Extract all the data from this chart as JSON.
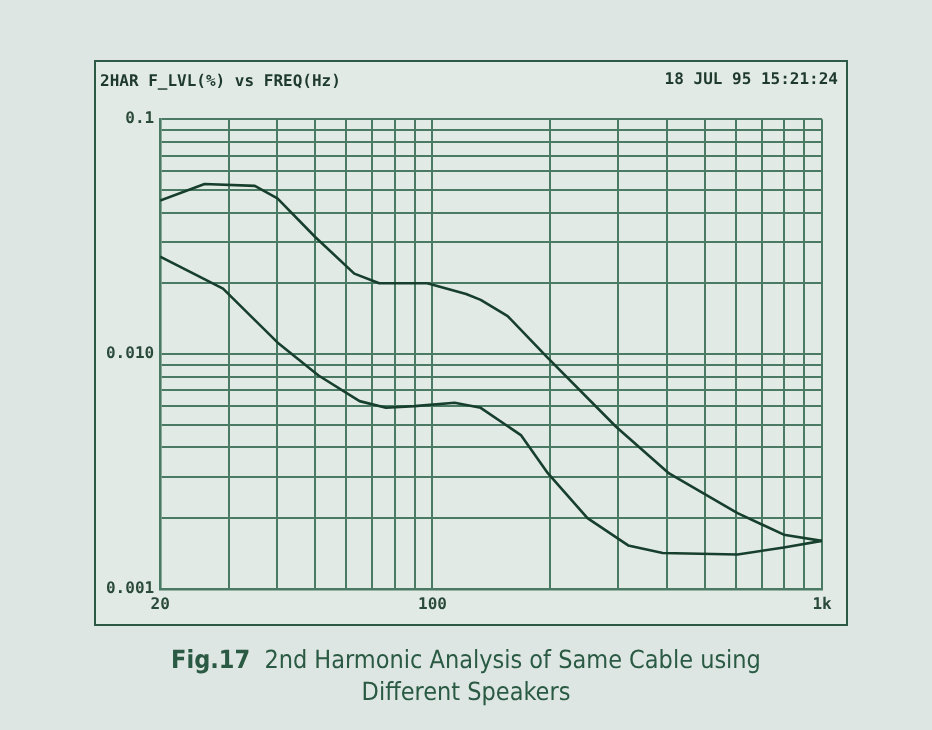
{
  "chart_data": {
    "type": "line",
    "title": "Fig.17 2nd Harmonic Analysis of Same Cable using Different Speakers",
    "subtitle": "2HAR F_LVL(%) vs FREQ(Hz)",
    "annotations": [
      "18 JUL 95 15:21:24"
    ],
    "log": "xy",
    "grid": true,
    "legend": false,
    "marker": "none",
    "line_style": "solid",
    "xlim": [
      20,
      1000
    ],
    "ylim": [
      0.001,
      0.1
    ],
    "xticks": [
      20,
      {
        "value": 30,
        "label": null
      },
      {
        "value": 40,
        "label": null
      },
      {
        "value": 50,
        "label": null
      },
      {
        "value": 60,
        "label": null
      },
      {
        "value": 70,
        "label": null
      },
      {
        "value": 80,
        "label": null
      },
      {
        "value": 90,
        "label": null
      },
      100,
      {
        "value": 200,
        "label": null
      },
      {
        "value": 300,
        "label": null
      },
      {
        "value": 400,
        "label": null
      },
      {
        "value": 500,
        "label": null
      },
      {
        "value": 600,
        "label": null
      },
      {
        "value": 700,
        "label": null
      },
      {
        "value": 800,
        "label": null
      },
      {
        "value": 900,
        "label": null
      },
      {
        "value": 1000,
        "label": "1k"
      }
    ],
    "yticks": [
      0.001,
      {
        "value": 0.002,
        "label": null
      },
      {
        "value": 0.003,
        "label": null
      },
      {
        "value": 0.004,
        "label": null
      },
      {
        "value": 0.005,
        "label": null
      },
      {
        "value": 0.006,
        "label": null
      },
      {
        "value": 0.007,
        "label": null
      },
      {
        "value": 0.008,
        "label": null
      },
      {
        "value": 0.009,
        "label": null
      },
      {
        "value": 0.01,
        "label": "0.010"
      },
      {
        "value": 0.02,
        "label": null
      },
      {
        "value": 0.03,
        "label": null
      },
      {
        "value": 0.04,
        "label": null
      },
      {
        "value": 0.05,
        "label": null
      },
      {
        "value": 0.06,
        "label": null
      },
      {
        "value": 0.07,
        "label": null
      },
      {
        "value": 0.08,
        "label": null
      },
      {
        "value": 0.09,
        "label": null
      },
      0.1
    ],
    "series": [
      {
        "color": "#173f2d",
        "x": [
          20,
          26,
          35,
          40,
          50,
          63,
          73,
          97,
          122,
          133,
          156,
          198,
          296,
          405,
          607,
          798,
          1000
        ],
        "values": [
          0.045,
          0.053,
          0.052,
          0.046,
          0.0315,
          0.022,
          0.02,
          0.02,
          0.018,
          0.017,
          0.0145,
          0.0096,
          0.0049,
          0.0031,
          0.0021,
          0.0017,
          0.0016
        ]
      },
      {
        "color": "#173f2d",
        "x": [
          20,
          29,
          40,
          51,
          65,
          76,
          90,
          114,
          133,
          169,
          198,
          250,
          318,
          390,
          607,
          798,
          1000
        ],
        "values": [
          0.026,
          0.019,
          0.0112,
          0.0081,
          0.0063,
          0.0059,
          0.006,
          0.0062,
          0.0059,
          0.0045,
          0.0031,
          0.002,
          0.00153,
          0.00142,
          0.0014,
          0.0015,
          0.0016
        ]
      }
    ]
  }
}
